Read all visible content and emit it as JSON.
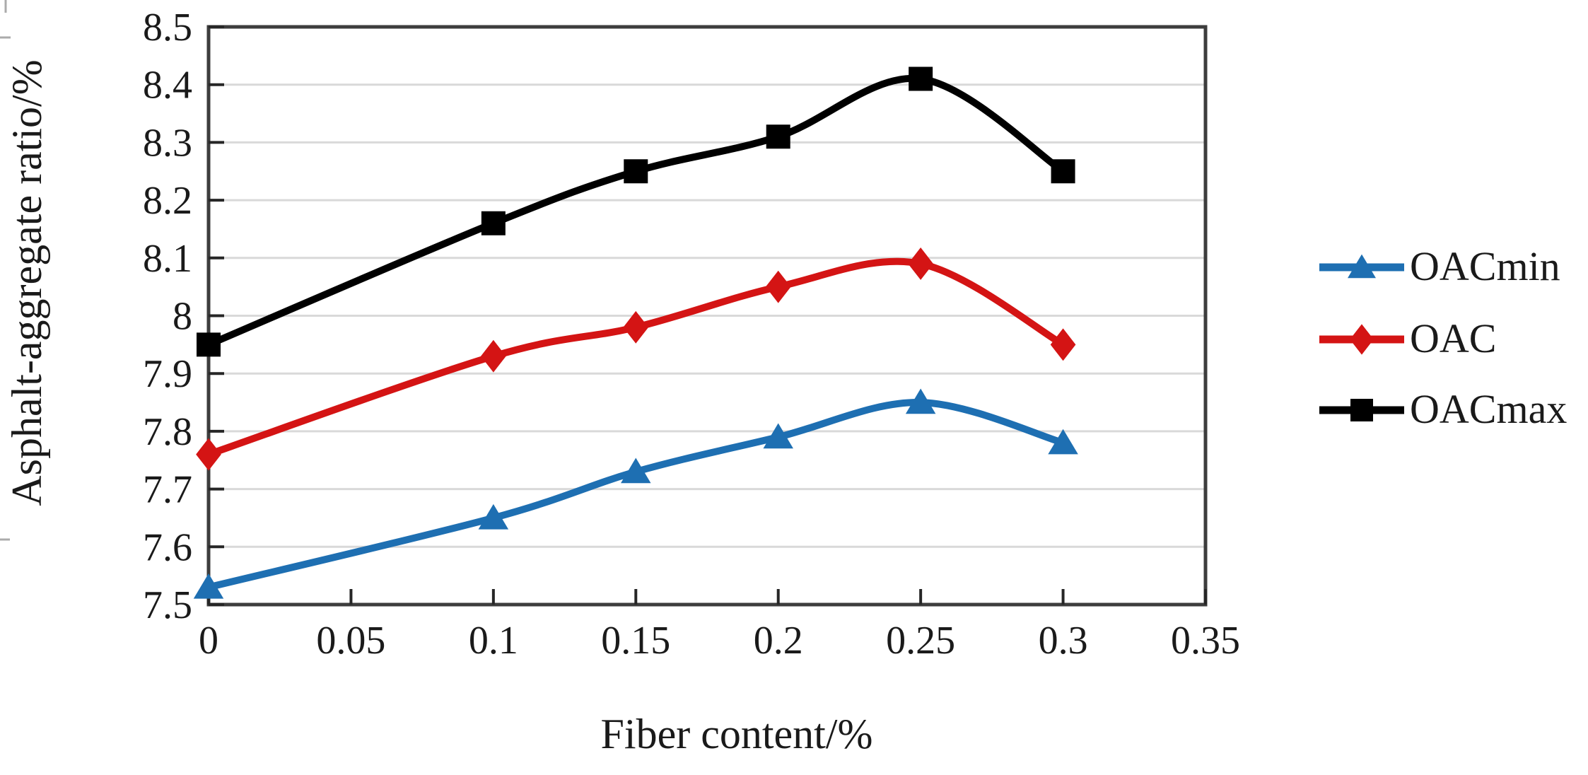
{
  "chart_data": {
    "type": "line",
    "title": "",
    "xlabel": "Fiber content/%",
    "ylabel": "Asphalt-aggregate ratio/%",
    "x": [
      0,
      0.1,
      0.15,
      0.2,
      0.25,
      0.3
    ],
    "series": [
      {
        "name": "OACmin",
        "color": "#1e6fb2",
        "marker": "triangle",
        "values": [
          7.53,
          7.65,
          7.73,
          7.79,
          7.85,
          7.78
        ]
      },
      {
        "name": "OAC",
        "color": "#d41414",
        "marker": "diamond",
        "values": [
          7.76,
          7.93,
          7.98,
          8.05,
          8.09,
          7.95
        ]
      },
      {
        "name": "OACmax",
        "color": "#000000",
        "marker": "square",
        "values": [
          7.95,
          8.16,
          8.25,
          8.31,
          8.41,
          8.25
        ]
      }
    ],
    "xlim": [
      0,
      0.35
    ],
    "ylim": [
      7.5,
      8.5
    ],
    "x_tick_values": [
      0,
      0.05,
      0.1,
      0.15,
      0.2,
      0.25,
      0.3,
      0.35
    ],
    "x_tick_labels": [
      "0",
      "0.05",
      "0.1",
      "0.15",
      "0.2",
      "0.25",
      "0.3",
      "0.35"
    ],
    "y_tick_values": [
      7.5,
      7.6,
      7.7,
      7.8,
      7.9,
      8.0,
      8.1,
      8.2,
      8.3,
      8.4,
      8.5
    ],
    "y_tick_labels": [
      "7.5",
      "7.6",
      "7.7",
      "7.8",
      "7.9",
      "8",
      "8.1",
      "8.2",
      "8.3",
      "8.4",
      "8.5"
    ],
    "grid": "horizontal",
    "legend_position": "right",
    "line_style": "smooth"
  },
  "colors": {
    "gridline": "#d9d9d9",
    "plot_border": "#3d3d3d",
    "tick": "#262626",
    "text": "#1a1a1a",
    "artifact": "#ababab",
    "background": "#ffffff"
  }
}
